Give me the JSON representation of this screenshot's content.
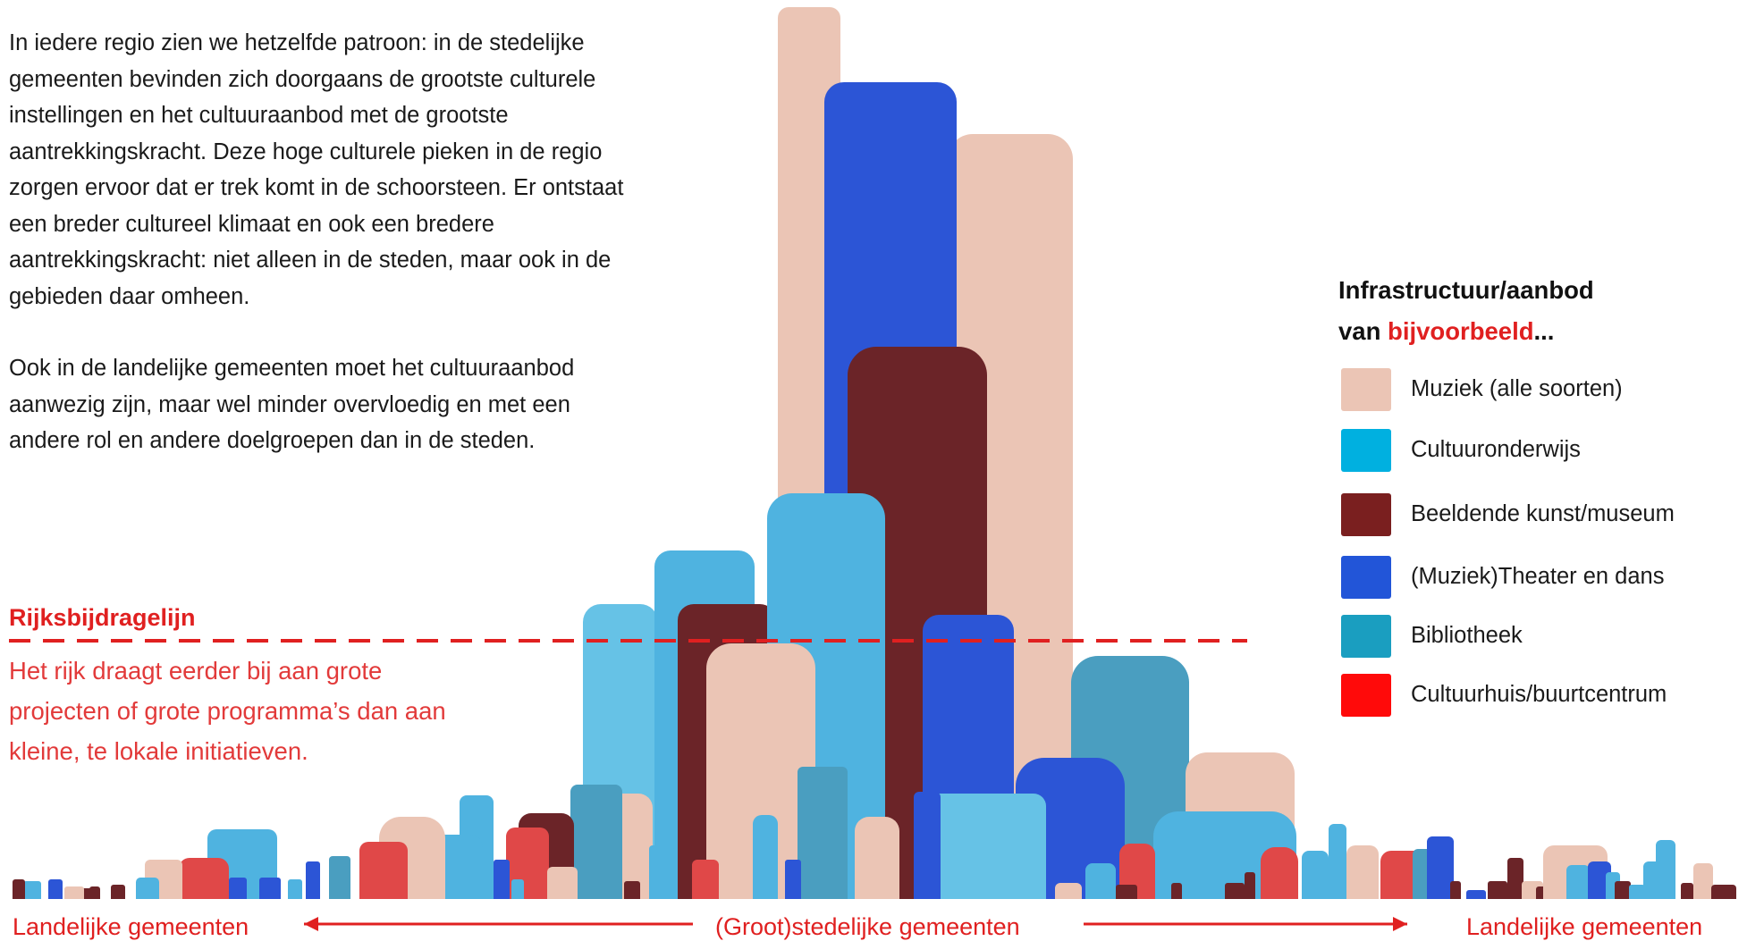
{
  "intro": {
    "paragraph1": "In iedere regio zien we hetzelfde patroon: in de stedelijke gemeenten bevinden zich doorgaans de grootste culturele instellingen en het cultuuraanbod met de grootste aantrekkingskracht. Deze hoge culturele pieken in de regio zorgen ervoor dat er trek komt in de schoorsteen. Er ontstaat een breder cultureel klimaat en ook een bredere aantrekkingskracht: niet alleen in de steden, maar ook in de gebieden daar omheen.",
    "paragraph2": "Ook in de landelijke gemeenten moet het cultuuraanbod aanwezig zijn, maar wel minder overvloedig en met een andere rol en andere doelgroepen dan in de steden."
  },
  "rijksbijdrage": {
    "title": "Rijksbijdragelijn",
    "text": "Het rijk draagt eerder bij aan grote projecten of grote programma’s dan aan kleine, te lokale initiatieven.",
    "line_color": "#e02020"
  },
  "legend": {
    "title_line1": "Infrastructuur/aanbod",
    "title_prefix": "van ",
    "title_highlight": "bijvoorbeeld",
    "title_suffix": "...",
    "items": [
      {
        "label": "Muziek (alle soorten)",
        "color": "#ebc5b5"
      },
      {
        "label": "Cultuuronderwijs",
        "color": "#00b0e0"
      },
      {
        "label": "Beeldende kunst/museum",
        "color": "#7a1f1f"
      },
      {
        "label": "(Muziek)Theater en dans",
        "color": "#2255d8"
      },
      {
        "label": "Bibliotheek",
        "color": "#1a9ec0"
      },
      {
        "label": "Cultuurhuis/buurtcentrum",
        "color": "#ff0a0a"
      }
    ]
  },
  "axis": {
    "left_label": "Landelijke gemeenten",
    "center_label": "(Groot)stedelijke gemeenten",
    "right_label": "Landelijke gemeenten",
    "color": "#e02020"
  },
  "colors": {
    "muziek": "#ebc5b5",
    "onderwijs": "#4fb3e0",
    "onderwijs_light": "#66c2e6",
    "museum": "#6b2428",
    "theater": "#2c55d6",
    "bibliotheek": "#4a9ec0",
    "cultuurhuis": "#e04848"
  }
}
